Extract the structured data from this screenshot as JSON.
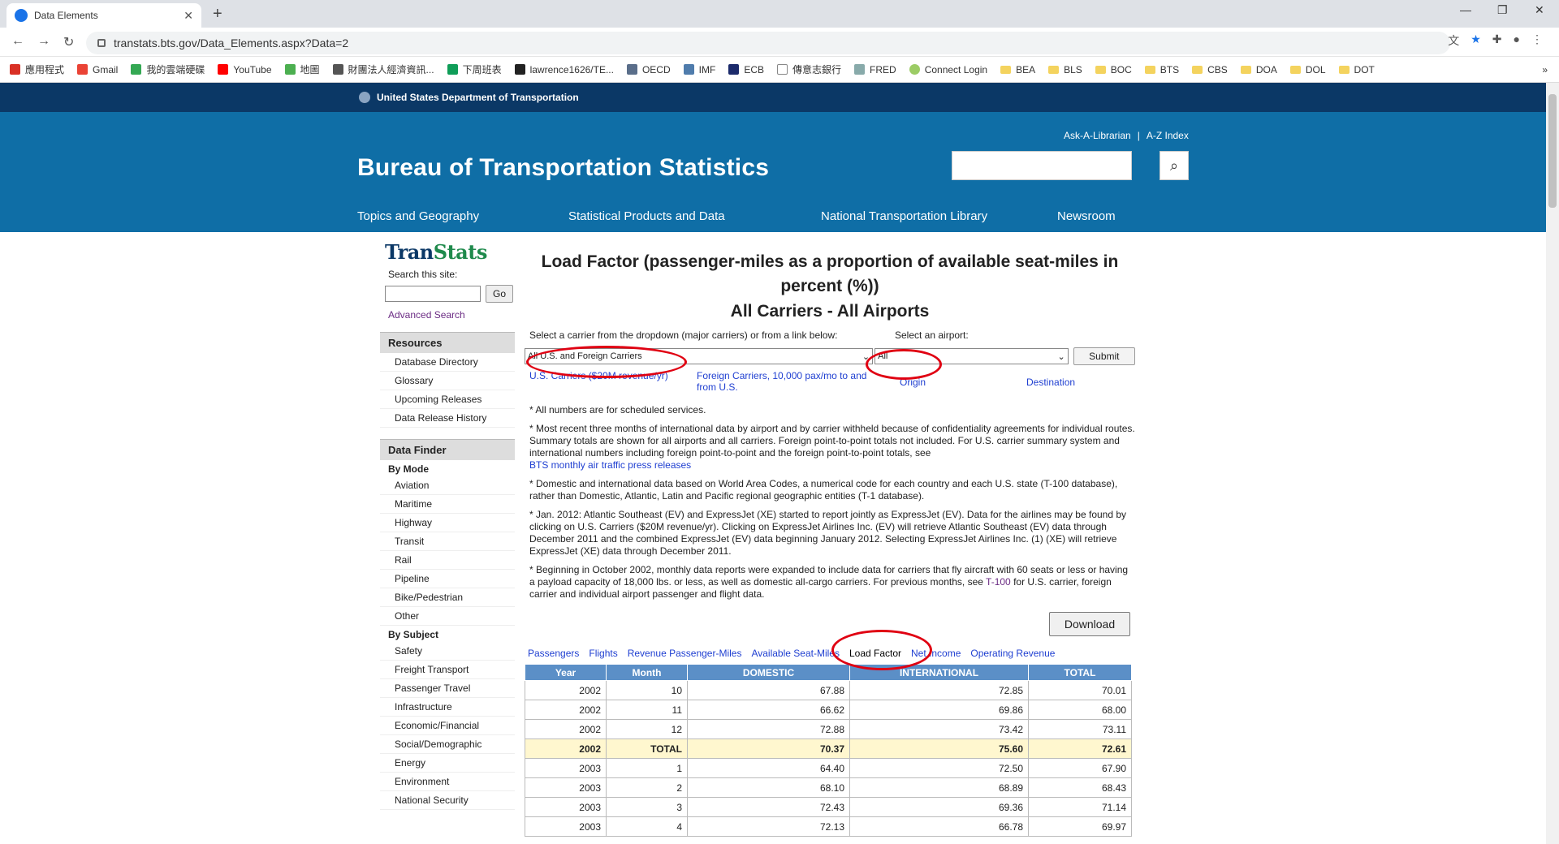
{
  "browser": {
    "tab_title": "Data Elements",
    "new_tab": "+",
    "url": "transtats.bts.gov/Data_Elements.aspx?Data=2",
    "bookmarks": [
      "應用程式",
      "Gmail",
      "我的雲端硬碟",
      "YouTube",
      "地圖",
      "財團法人經濟資訊...",
      "下周班表",
      "lawrence1626/TE...",
      "OECD",
      "IMF",
      "ECB",
      "傳意志銀行",
      "FRED",
      "Connect Login",
      "BEA",
      "BLS",
      "BOC",
      "BTS",
      "CBS",
      "DOA",
      "DOL",
      "DOT"
    ],
    "more": "»"
  },
  "site": {
    "agency": "United States Department of Transportation",
    "ask_librarian": "Ask-A-Librarian",
    "separator": "|",
    "az_index": "A-Z Index",
    "title": "Bureau of Transportation Statistics",
    "nav": [
      "Topics and Geography",
      "Statistical Products and Data",
      "National Transportation Library",
      "Newsroom"
    ]
  },
  "sidebar": {
    "logo_a": "Tran",
    "logo_b": "Stats",
    "search_label": "Search this site:",
    "go": "Go",
    "advanced": "Advanced Search",
    "resources_title": "Resources",
    "resources": [
      "Database Directory",
      "Glossary",
      "Upcoming Releases",
      "Data Release History"
    ],
    "finder_title": "Data Finder",
    "by_mode": "By Mode",
    "modes": [
      "Aviation",
      "Maritime",
      "Highway",
      "Transit",
      "Rail",
      "Pipeline",
      "Bike/Pedestrian",
      "Other"
    ],
    "by_subject": "By Subject",
    "subjects": [
      "Safety",
      "Freight Transport",
      "Passenger Travel",
      "Infrastructure",
      "Economic/Financial",
      "Social/Demographic",
      "Energy",
      "Environment",
      "National Security"
    ]
  },
  "main": {
    "title": "Load Factor (passenger-miles as a proportion of available seat-miles in percent (%))",
    "subtitle": "All Carriers - All Airports",
    "carrier_label": "Select a carrier from the dropdown (major carriers) or from a link below:",
    "airport_label": "Select an airport:",
    "carrier_value": "All U.S. and Foreign Carriers",
    "airport_value": "All",
    "submit": "Submit",
    "link_us": "U.S. Carriers ($20M revenue/yr)",
    "link_foreign": "Foreign Carriers, 10,000 pax/mo to and from U.S.",
    "link_origin": "Origin",
    "link_destination": "Destination",
    "note1": "* All numbers are for scheduled services.",
    "note2": "* Most recent three months of international data by airport and by carrier withheld because of confidentiality agreements for individual routes. Summary totals are shown for all airports and all carriers. Foreign point-to-point totals not included. For U.S. carrier summary system and international numbers including foreign point-to-point and the foreign point-to-point totals, see",
    "note2_link": "BTS monthly air traffic press releases",
    "note3": "* Domestic and international data based on World Area Codes, a numerical code for each country and each U.S. state (T-100 database), rather than Domestic, Atlantic, Latin and Pacific regional geographic entities (T-1 database).",
    "note4": "* Jan. 2012: Atlantic Southeast (EV) and ExpressJet (XE) started to report jointly as ExpressJet (EV). Data for the airlines may be found by clicking on U.S. Carriers ($20M revenue/yr). Clicking on ExpressJet Airlines Inc. (EV) will retrieve Atlantic Southeast (EV) data through December 2011 and the combined ExpressJet (EV) data beginning January 2012. Selecting ExpressJet Airlines Inc. (1) (XE) will retrieve ExpressJet (XE) data through December 2011.",
    "note5": "* Beginning in October 2002, monthly data reports were expanded to include data for carriers that fly aircraft with 60 seats or less or having a payload capacity of 18,000 lbs. or less, as well as domestic all-cargo carriers. For previous months, see",
    "note5_link": "T-100",
    "note5_end": "for U.S. carrier, foreign carrier and individual airport passenger and flight data.",
    "download": "Download",
    "tabs": [
      "Passengers",
      "Flights",
      "Revenue Passenger-Miles",
      "Available Seat-Miles",
      "Load Factor",
      "Net Income",
      "Operating Revenue"
    ],
    "active_tab": "Load Factor",
    "columns": [
      "Year",
      "Month",
      "DOMESTIC",
      "INTERNATIONAL",
      "TOTAL"
    ],
    "rows": [
      [
        "2002",
        "10",
        "67.88",
        "72.85",
        "70.01"
      ],
      [
        "2002",
        "11",
        "66.62",
        "69.86",
        "68.00"
      ],
      [
        "2002",
        "12",
        "72.88",
        "73.42",
        "73.11"
      ],
      [
        "2002",
        "TOTAL",
        "70.37",
        "75.60",
        "72.61"
      ],
      [
        "2003",
        "1",
        "64.40",
        "72.50",
        "67.90"
      ],
      [
        "2003",
        "2",
        "68.10",
        "68.89",
        "68.43"
      ],
      [
        "2003",
        "3",
        "72.43",
        "69.36",
        "71.14"
      ],
      [
        "2003",
        "4",
        "72.13",
        "66.78",
        "69.97"
      ]
    ]
  },
  "colors": {
    "dot_bar": "#0b3866",
    "header": "#0f6ea6",
    "table_header": "#5b8fc7",
    "annotation_ring": "#e00012"
  }
}
